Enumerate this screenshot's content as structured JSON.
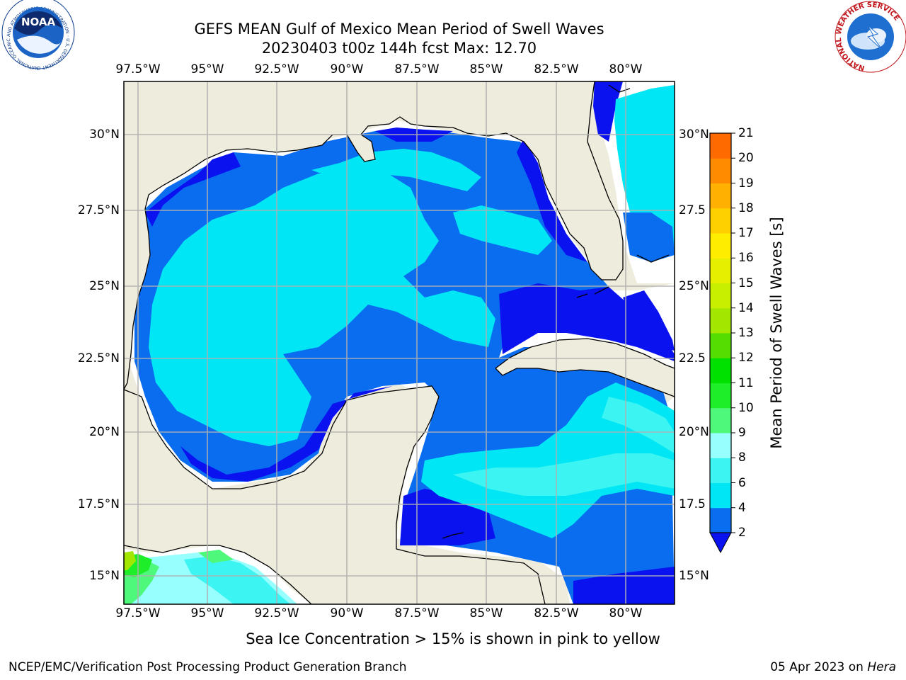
{
  "title": {
    "line1": "GEFS MEAN Gulf of Mexico Mean Period of Swell Waves",
    "line2": "20230403 t00z 144h fcst   Max: 12.70"
  },
  "lon_labels": [
    "97.5°W",
    "95°W",
    "92.5°W",
    "90°W",
    "87.5°W",
    "85°W",
    "82.5°W",
    "80°W"
  ],
  "lat_labels_left": [
    "30°N",
    "27.5°N",
    "25°N",
    "22.5°N",
    "20°N",
    "17.5°N",
    "15°N"
  ],
  "lat_labels_right": [
    "30°N",
    "27.5",
    "25°N",
    "22.5",
    "20°N",
    "17.5",
    "15°N"
  ],
  "colorbar": {
    "title": "Mean Period of Swell Waves [s]",
    "ticks": [
      "2",
      "4",
      "6",
      "8",
      "9",
      "10",
      "11",
      "12",
      "13",
      "14",
      "15",
      "16",
      "17",
      "18",
      "19",
      "20",
      "21"
    ],
    "colors": [
      "#0a6df0",
      "#00e6f5",
      "#3cf4f1",
      "#97fffe",
      "#4ef87a",
      "#1eee2a",
      "#00e100",
      "#55dc00",
      "#a3e600",
      "#c8ee00",
      "#e7ef00",
      "#ffed00",
      "#ffd000",
      "#ffb000",
      "#ff8c00",
      "#ff6a00",
      "#ff4200",
      "#ff1600"
    ],
    "underflow_color": "#0a12f0"
  },
  "map_colors": {
    "land": "#eeecdc",
    "water_none": "#ffffff",
    "level_2_4": "#0a6df0",
    "level_lt2": "#0a12f0",
    "level_4_6": "#00e6f5",
    "level_6_8": "#3cf4f1",
    "level_8_9": "#97fffe",
    "level_9_10": "#4ef87a",
    "level_10_11": "#1eee2a",
    "level_11_12": "#00e100",
    "level_12_13": "#55dc00"
  },
  "footer_note": "Sea Ice Concentration > 15% is shown in pink to yellow",
  "credit_left": "NCEP/EMC/Verification Post Processing Product Generation Branch",
  "credit_right_date": "05 Apr 2023 on ",
  "credit_right_machine": "Hera",
  "logos": {
    "noaa_text": "NOAA",
    "noaa_ring_text": "NATIONAL OCEANIC AND ATMOSPHERIC ADMINISTRATION · U.S. DEPARTMENT OF COMMERCE",
    "nws_ring_text": "NATIONAL WEATHER SERVICE"
  }
}
